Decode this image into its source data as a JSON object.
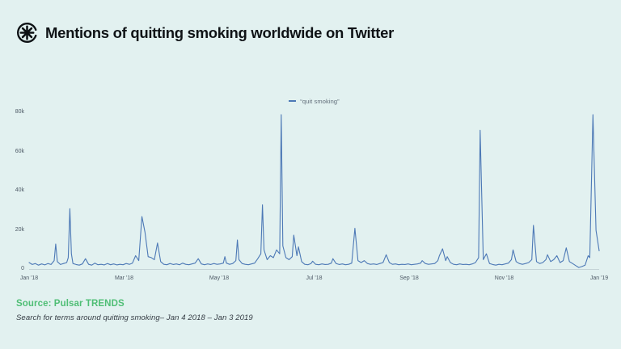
{
  "header": {
    "title": "Mentions of quitting smoking worldwide on Twitter",
    "logo_icon": "pulsar-asterisk-icon"
  },
  "footer": {
    "source": "Source: Pulsar TRENDS",
    "caption": "Search for terms around quitting smoking– Jan 4 2018 – Jan 3 2019"
  },
  "colors": {
    "background": "#e2f1f0",
    "line_blue": "#4d79b6",
    "source_green": "#4fbe75",
    "title_text": "#0f1316",
    "tick_text": "#4e5a66",
    "axis_line": "#c4d3d6",
    "legend_text": "#5f6b77"
  },
  "chart_data": {
    "type": "line",
    "title": "Mentions of quitting smoking worldwide on Twitter",
    "legend": [
      {
        "label": "“quit smoking”",
        "color": "#4d79b6"
      }
    ],
    "legend_position": "top-center",
    "grid": false,
    "x_ticks": [
      "Jan '18",
      "Mar '18",
      "May '18",
      "Jul '18",
      "Sep '18",
      "Nov '18",
      "Jan '19"
    ],
    "y_ticks": [
      "80k",
      "60k",
      "40k",
      "20k",
      "0"
    ],
    "ylabel": "",
    "xlabel": "",
    "ylim_mentions": [
      0,
      80000
    ],
    "x_range_days": [
      0,
      364
    ],
    "x_start_date": "Jan 4 2018",
    "x_end_date": "Jan 3 2019",
    "y_unit": "thousands of mentions",
    "notable_peaks": [
      {
        "approx_date": "late Jan 2018",
        "value_k": 13
      },
      {
        "approx_date": "early Feb 2018",
        "value_k": 31
      },
      {
        "approx_date": "mid Mar 2018",
        "value_k": 27
      },
      {
        "approx_date": "late Mar 2018",
        "value_k": 13.5
      },
      {
        "approx_date": "mid May 2018",
        "value_k": 15
      },
      {
        "approx_date": "early Jun 2018",
        "value_k": 33
      },
      {
        "approx_date": "mid Jun 2018",
        "value_k": 79
      },
      {
        "approx_date": "late Jun 2018",
        "value_k": 17.5
      },
      {
        "approx_date": "early Aug 2018",
        "value_k": 21
      },
      {
        "approx_date": "late Oct 2018",
        "value_k": 71
      },
      {
        "approx_date": "late Nov 2018",
        "value_k": 22.5
      },
      {
        "approx_date": "New Year 2019",
        "value_k": 79
      }
    ],
    "series": [
      {
        "name": "“quit smoking”",
        "points_format": "[day_index_from_Jan_4_2018, mentions_in_thousands]",
        "points": [
          [
            0,
            3.5
          ],
          [
            2,
            2.5
          ],
          [
            4,
            3
          ],
          [
            6,
            2.2
          ],
          [
            8,
            2.8
          ],
          [
            10,
            2.3
          ],
          [
            12,
            3
          ],
          [
            14,
            2.5
          ],
          [
            16,
            4.5
          ],
          [
            17,
            13
          ],
          [
            18,
            4
          ],
          [
            20,
            2.5
          ],
          [
            22,
            3
          ],
          [
            24,
            3.5
          ],
          [
            25,
            6
          ],
          [
            26,
            31
          ],
          [
            27,
            8
          ],
          [
            28,
            3
          ],
          [
            30,
            2.5
          ],
          [
            32,
            2.2
          ],
          [
            34,
            2.8
          ],
          [
            36,
            5.5
          ],
          [
            38,
            2.6
          ],
          [
            40,
            2.2
          ],
          [
            42,
            3.2
          ],
          [
            44,
            2.4
          ],
          [
            46,
            2.6
          ],
          [
            48,
            2.3
          ],
          [
            50,
            3
          ],
          [
            52,
            2.4
          ],
          [
            54,
            2.8
          ],
          [
            56,
            2.3
          ],
          [
            58,
            2.6
          ],
          [
            60,
            2.4
          ],
          [
            62,
            3
          ],
          [
            64,
            2.6
          ],
          [
            66,
            3.2
          ],
          [
            68,
            7
          ],
          [
            70,
            4.5
          ],
          [
            72,
            27
          ],
          [
            74,
            19
          ],
          [
            76,
            6.5
          ],
          [
            78,
            6
          ],
          [
            80,
            5
          ],
          [
            82,
            13.5
          ],
          [
            84,
            4
          ],
          [
            86,
            2.6
          ],
          [
            88,
            2.4
          ],
          [
            90,
            3
          ],
          [
            92,
            2.5
          ],
          [
            94,
            2.8
          ],
          [
            96,
            2.4
          ],
          [
            98,
            3.2
          ],
          [
            100,
            2.6
          ],
          [
            102,
            2.4
          ],
          [
            104,
            2.8
          ],
          [
            106,
            3.2
          ],
          [
            108,
            5.5
          ],
          [
            110,
            2.8
          ],
          [
            112,
            2.4
          ],
          [
            114,
            2.8
          ],
          [
            116,
            2.5
          ],
          [
            118,
            3
          ],
          [
            120,
            2.6
          ],
          [
            122,
            2.8
          ],
          [
            124,
            3.2
          ],
          [
            125,
            6.5
          ],
          [
            126,
            3.2
          ],
          [
            128,
            2.6
          ],
          [
            130,
            3
          ],
          [
            132,
            4.5
          ],
          [
            133,
            15
          ],
          [
            134,
            5
          ],
          [
            136,
            3
          ],
          [
            138,
            2.6
          ],
          [
            140,
            2.4
          ],
          [
            142,
            2.8
          ],
          [
            144,
            3.2
          ],
          [
            146,
            5.5
          ],
          [
            148,
            8
          ],
          [
            149,
            33
          ],
          [
            150,
            10
          ],
          [
            152,
            5
          ],
          [
            154,
            7
          ],
          [
            156,
            6
          ],
          [
            158,
            10
          ],
          [
            160,
            8
          ],
          [
            161,
            79
          ],
          [
            162,
            12
          ],
          [
            164,
            6
          ],
          [
            166,
            5
          ],
          [
            168,
            6.5
          ],
          [
            169,
            17.5
          ],
          [
            171,
            7
          ],
          [
            172,
            11.5
          ],
          [
            174,
            4
          ],
          [
            176,
            2.6
          ],
          [
            178,
            2.4
          ],
          [
            180,
            3
          ],
          [
            181,
            4.2
          ],
          [
            183,
            2.6
          ],
          [
            185,
            2.4
          ],
          [
            187,
            2.8
          ],
          [
            189,
            2.5
          ],
          [
            191,
            2.6
          ],
          [
            193,
            3.2
          ],
          [
            194,
            5.5
          ],
          [
            196,
            3
          ],
          [
            198,
            2.5
          ],
          [
            200,
            2.8
          ],
          [
            202,
            2.4
          ],
          [
            204,
            2.6
          ],
          [
            206,
            3.2
          ],
          [
            208,
            21
          ],
          [
            210,
            4.5
          ],
          [
            212,
            3.5
          ],
          [
            214,
            4.5
          ],
          [
            216,
            3
          ],
          [
            218,
            2.6
          ],
          [
            220,
            2.8
          ],
          [
            222,
            2.5
          ],
          [
            224,
            3
          ],
          [
            226,
            3.5
          ],
          [
            228,
            7.5
          ],
          [
            230,
            3.5
          ],
          [
            232,
            2.6
          ],
          [
            234,
            2.8
          ],
          [
            236,
            2.4
          ],
          [
            238,
            2.6
          ],
          [
            240,
            2.5
          ],
          [
            242,
            2.8
          ],
          [
            244,
            2.4
          ],
          [
            246,
            2.6
          ],
          [
            248,
            2.8
          ],
          [
            250,
            3.2
          ],
          [
            251,
            4.5
          ],
          [
            253,
            3
          ],
          [
            255,
            2.6
          ],
          [
            257,
            2.8
          ],
          [
            259,
            3
          ],
          [
            261,
            4.5
          ],
          [
            262,
            7
          ],
          [
            264,
            10.5
          ],
          [
            266,
            4.5
          ],
          [
            267,
            6.5
          ],
          [
            269,
            3.5
          ],
          [
            271,
            2.6
          ],
          [
            273,
            2.4
          ],
          [
            275,
            2.8
          ],
          [
            277,
            2.5
          ],
          [
            279,
            2.6
          ],
          [
            281,
            2.4
          ],
          [
            283,
            2.8
          ],
          [
            285,
            3.5
          ],
          [
            287,
            6
          ],
          [
            288,
            71
          ],
          [
            290,
            5
          ],
          [
            292,
            8
          ],
          [
            294,
            3
          ],
          [
            296,
            2.5
          ],
          [
            298,
            2.2
          ],
          [
            300,
            2.6
          ],
          [
            302,
            2.4
          ],
          [
            304,
            2.8
          ],
          [
            306,
            3.2
          ],
          [
            308,
            5
          ],
          [
            309,
            10
          ],
          [
            311,
            4
          ],
          [
            313,
            3
          ],
          [
            315,
            2.6
          ],
          [
            317,
            3
          ],
          [
            319,
            3.5
          ],
          [
            321,
            5
          ],
          [
            322,
            22.5
          ],
          [
            324,
            4
          ],
          [
            326,
            3
          ],
          [
            328,
            3.5
          ],
          [
            330,
            5
          ],
          [
            331,
            7.5
          ],
          [
            333,
            4
          ],
          [
            335,
            5
          ],
          [
            337,
            7
          ],
          [
            339,
            3.5
          ],
          [
            341,
            4.5
          ],
          [
            343,
            11
          ],
          [
            345,
            4
          ],
          [
            347,
            3
          ],
          [
            349,
            2
          ],
          [
            351,
            1
          ],
          [
            353,
            1.5
          ],
          [
            355,
            2.2
          ],
          [
            357,
            7
          ],
          [
            358,
            6
          ],
          [
            360,
            79
          ],
          [
            362,
            20
          ],
          [
            364,
            9.5
          ]
        ]
      }
    ]
  }
}
